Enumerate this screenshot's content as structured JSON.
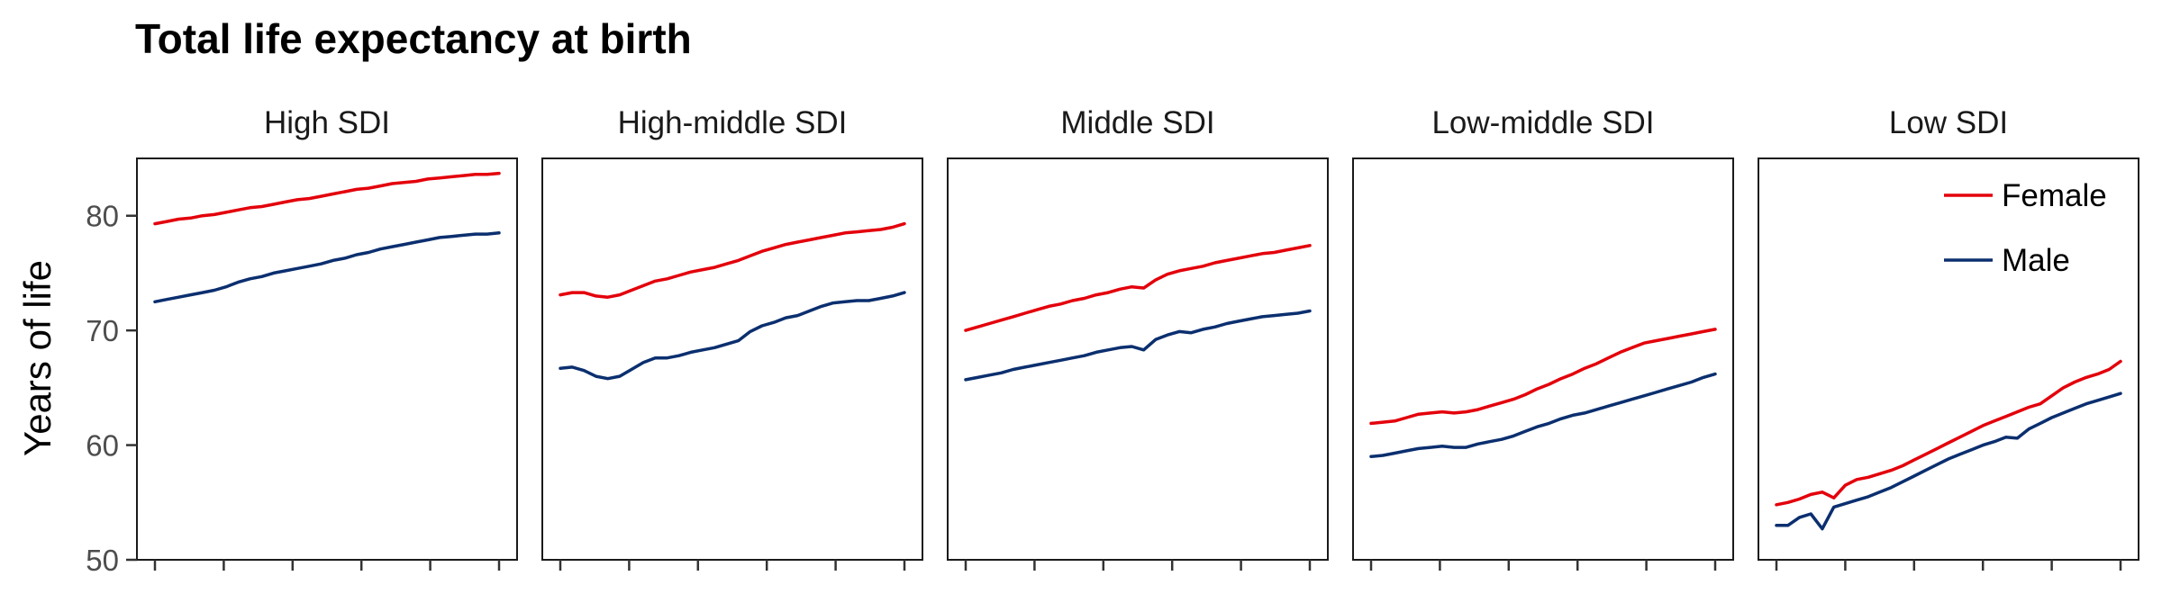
{
  "chart_data": {
    "type": "line",
    "title": "Total life expectancy at birth",
    "ylabel": "Years of life",
    "xlabel": "",
    "ylim": [
      50,
      85
    ],
    "yticks": [
      50,
      60,
      70,
      80
    ],
    "x_tick_count": 6,
    "legend_position": "top-right",
    "colors": {
      "Female": "#e3000b",
      "Male": "#0b2f6f"
    },
    "series_names": [
      "Female",
      "Male"
    ],
    "panels": [
      {
        "label": "High SDI",
        "series": [
          {
            "name": "Female",
            "values": [
              79.3,
              79.5,
              79.7,
              79.8,
              80.0,
              80.1,
              80.3,
              80.5,
              80.7,
              80.8,
              81.0,
              81.2,
              81.4,
              81.5,
              81.7,
              81.9,
              82.1,
              82.3,
              82.4,
              82.6,
              82.8,
              82.9,
              83.0,
              83.2,
              83.3,
              83.4,
              83.5,
              83.6,
              83.6,
              83.7
            ]
          },
          {
            "name": "Male",
            "values": [
              72.5,
              72.7,
              72.9,
              73.1,
              73.3,
              73.5,
              73.8,
              74.2,
              74.5,
              74.7,
              75.0,
              75.2,
              75.4,
              75.6,
              75.8,
              76.1,
              76.3,
              76.6,
              76.8,
              77.1,
              77.3,
              77.5,
              77.7,
              77.9,
              78.1,
              78.2,
              78.3,
              78.4,
              78.4,
              78.5
            ]
          }
        ]
      },
      {
        "label": "High-middle SDI",
        "series": [
          {
            "name": "Female",
            "values": [
              73.1,
              73.3,
              73.3,
              73.0,
              72.9,
              73.1,
              73.5,
              73.9,
              74.3,
              74.5,
              74.8,
              75.1,
              75.3,
              75.5,
              75.8,
              76.1,
              76.5,
              76.9,
              77.2,
              77.5,
              77.7,
              77.9,
              78.1,
              78.3,
              78.5,
              78.6,
              78.7,
              78.8,
              79.0,
              79.3
            ]
          },
          {
            "name": "Male",
            "values": [
              66.7,
              66.8,
              66.5,
              66.0,
              65.8,
              66.0,
              66.6,
              67.2,
              67.6,
              67.6,
              67.8,
              68.1,
              68.3,
              68.5,
              68.8,
              69.1,
              69.9,
              70.4,
              70.7,
              71.1,
              71.3,
              71.7,
              72.1,
              72.4,
              72.5,
              72.6,
              72.6,
              72.8,
              73.0,
              73.3
            ]
          }
        ]
      },
      {
        "label": "Middle SDI",
        "series": [
          {
            "name": "Female",
            "values": [
              70.0,
              70.3,
              70.6,
              70.9,
              71.2,
              71.5,
              71.8,
              72.1,
              72.3,
              72.6,
              72.8,
              73.1,
              73.3,
              73.6,
              73.8,
              73.7,
              74.4,
              74.9,
              75.2,
              75.4,
              75.6,
              75.9,
              76.1,
              76.3,
              76.5,
              76.7,
              76.8,
              77.0,
              77.2,
              77.4
            ]
          },
          {
            "name": "Male",
            "values": [
              65.7,
              65.9,
              66.1,
              66.3,
              66.6,
              66.8,
              67.0,
              67.2,
              67.4,
              67.6,
              67.8,
              68.1,
              68.3,
              68.5,
              68.6,
              68.3,
              69.2,
              69.6,
              69.9,
              69.8,
              70.1,
              70.3,
              70.6,
              70.8,
              71.0,
              71.2,
              71.3,
              71.4,
              71.5,
              71.7
            ]
          }
        ]
      },
      {
        "label": "Low-middle SDI",
        "series": [
          {
            "name": "Female",
            "values": [
              61.9,
              62.0,
              62.1,
              62.4,
              62.7,
              62.8,
              62.9,
              62.8,
              62.9,
              63.1,
              63.4,
              63.7,
              64.0,
              64.4,
              64.9,
              65.3,
              65.8,
              66.2,
              66.7,
              67.1,
              67.6,
              68.1,
              68.5,
              68.9,
              69.1,
              69.3,
              69.5,
              69.7,
              69.9,
              70.1
            ]
          },
          {
            "name": "Male",
            "values": [
              59.0,
              59.1,
              59.3,
              59.5,
              59.7,
              59.8,
              59.9,
              59.8,
              59.8,
              60.1,
              60.3,
              60.5,
              60.8,
              61.2,
              61.6,
              61.9,
              62.3,
              62.6,
              62.8,
              63.1,
              63.4,
              63.7,
              64.0,
              64.3,
              64.6,
              64.9,
              65.2,
              65.5,
              65.9,
              66.2
            ]
          }
        ]
      },
      {
        "label": "Low SDI",
        "series": [
          {
            "name": "Female",
            "values": [
              54.8,
              55.0,
              55.3,
              55.7,
              55.9,
              55.4,
              56.5,
              57.0,
              57.2,
              57.5,
              57.8,
              58.2,
              58.7,
              59.2,
              59.7,
              60.2,
              60.7,
              61.2,
              61.7,
              62.1,
              62.5,
              62.9,
              63.3,
              63.6,
              64.3,
              65.0,
              65.5,
              65.9,
              66.2,
              66.6,
              67.3
            ]
          },
          {
            "name": "Male",
            "values": [
              53.0,
              53.0,
              53.7,
              54.0,
              52.7,
              54.6,
              54.9,
              55.2,
              55.5,
              55.9,
              56.3,
              56.8,
              57.3,
              57.8,
              58.3,
              58.8,
              59.2,
              59.6,
              60.0,
              60.3,
              60.7,
              60.6,
              61.4,
              61.9,
              62.4,
              62.8,
              63.2,
              63.6,
              63.9,
              64.2,
              64.5
            ]
          }
        ]
      }
    ]
  }
}
